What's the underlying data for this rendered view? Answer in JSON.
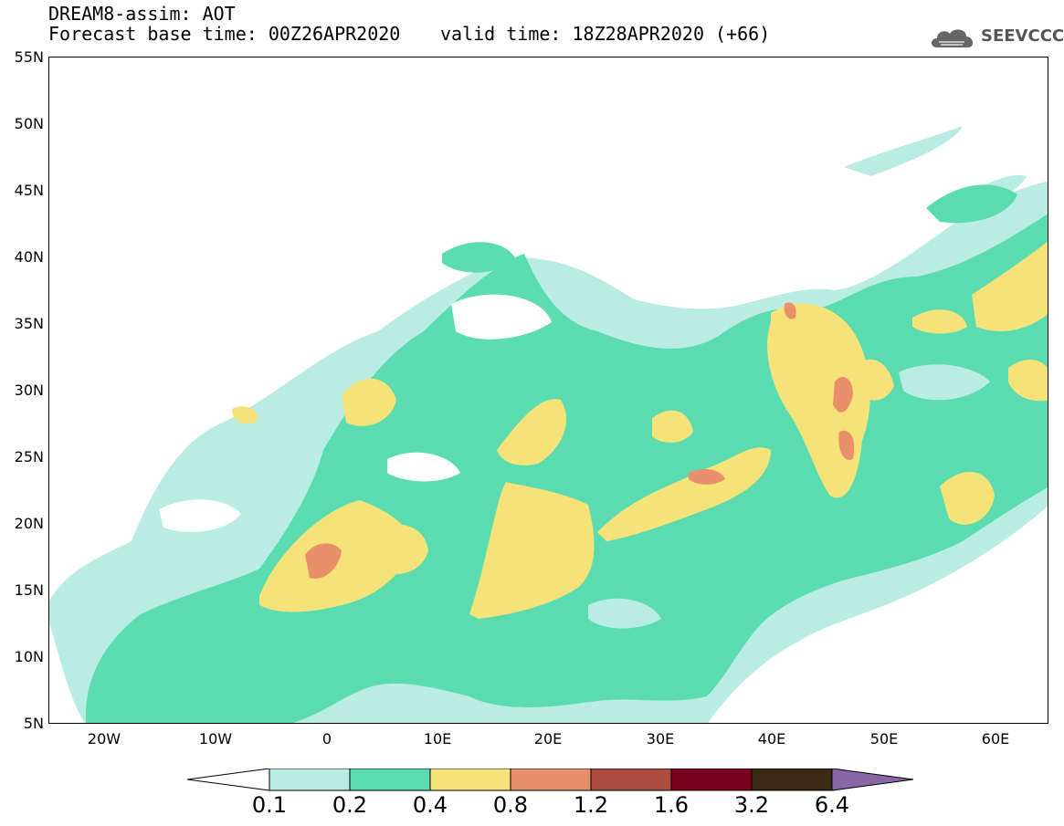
{
  "header": {
    "title_line1": "DREAM8-assim: AOT",
    "title_line2": "Forecast base time: 00Z26APR2020",
    "valid_time": "valid time: 18Z28APR2020 (+66)",
    "logo_text": "SEEVCCC"
  },
  "map": {
    "projection": "latitude-longitude",
    "lon_range": [
      -25,
      65
    ],
    "lat_range": [
      5,
      55
    ],
    "lat_labels": [
      "55N",
      "50N",
      "45N",
      "40N",
      "35N",
      "30N",
      "25N",
      "20N",
      "15N",
      "10N",
      "5N"
    ],
    "lon_labels": [
      "20W",
      "10W",
      "0",
      "10E",
      "20E",
      "30E",
      "40E",
      "50E",
      "60E"
    ]
  },
  "colorbar": {
    "thresholds": [
      "0.1",
      "0.2",
      "0.4",
      "0.8",
      "1.2",
      "1.6",
      "3.2",
      "6.4"
    ],
    "colors": [
      "#ffffff",
      "#b9ece2",
      "#5bdcb0",
      "#f5e379",
      "#e9906a",
      "#ad4d3f",
      "#7b0020",
      "#3a2a17",
      "#8a66a8"
    ]
  }
}
